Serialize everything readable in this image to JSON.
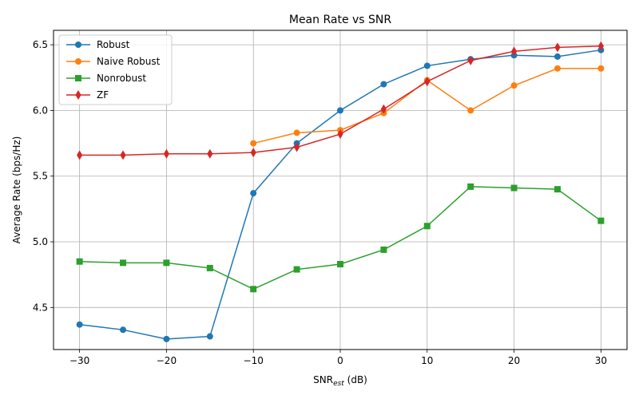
{
  "chart_data": {
    "type": "line",
    "title": "Mean Rate vs SNR",
    "xlabel_main": "SNR",
    "xlabel_sub": "est",
    "xlabel_unit": " (dB)",
    "ylabel": "Average Rate (bps/Hz)",
    "xlim": [
      -33,
      33
    ],
    "ylim": [
      4.18,
      6.61
    ],
    "xticks": [
      -30,
      -20,
      -10,
      0,
      10,
      20,
      30
    ],
    "xtick_labels": [
      "−30",
      "−20",
      "−10",
      "0",
      "10",
      "20",
      "30"
    ],
    "yticks": [
      4.5,
      5.0,
      5.5,
      6.0,
      6.5
    ],
    "ytick_labels": [
      "4.5",
      "5.0",
      "5.5",
      "6.0",
      "6.5"
    ],
    "grid": true,
    "legend_position": "top-left",
    "series": [
      {
        "name": "Robust",
        "color": "#1f77b4",
        "marker": "circle",
        "x": [
          -30,
          -25,
          -20,
          -15,
          -10,
          -5,
          0,
          5,
          10,
          15,
          20,
          25,
          30
        ],
        "y": [
          4.37,
          4.33,
          4.26,
          4.28,
          5.37,
          5.75,
          6.0,
          6.2,
          6.34,
          6.39,
          6.42,
          6.41,
          6.46
        ]
      },
      {
        "name": "Naive Robust",
        "color": "#ff7f0e",
        "marker": "circle",
        "x": [
          -10,
          -5,
          0,
          5,
          10,
          15,
          20,
          25,
          30
        ],
        "y": [
          5.75,
          5.83,
          5.85,
          5.98,
          6.23,
          6.0,
          6.19,
          6.32,
          6.32
        ]
      },
      {
        "name": "Nonrobust",
        "color": "#2ca02c",
        "marker": "square",
        "x": [
          -30,
          -25,
          -20,
          -15,
          -10,
          -5,
          0,
          5,
          10,
          15,
          20,
          25,
          30
        ],
        "y": [
          4.85,
          4.84,
          4.84,
          4.8,
          4.64,
          4.79,
          4.83,
          4.94,
          5.12,
          5.42,
          5.41,
          5.4,
          5.16
        ]
      },
      {
        "name": "ZF",
        "color": "#d62728",
        "marker": "diamond",
        "x": [
          -30,
          -25,
          -20,
          -15,
          -10,
          -5,
          0,
          5,
          10,
          15,
          20,
          25,
          30
        ],
        "y": [
          5.66,
          5.66,
          5.67,
          5.67,
          5.68,
          5.72,
          5.82,
          6.01,
          6.22,
          6.38,
          6.45,
          6.48,
          6.49
        ]
      }
    ]
  }
}
